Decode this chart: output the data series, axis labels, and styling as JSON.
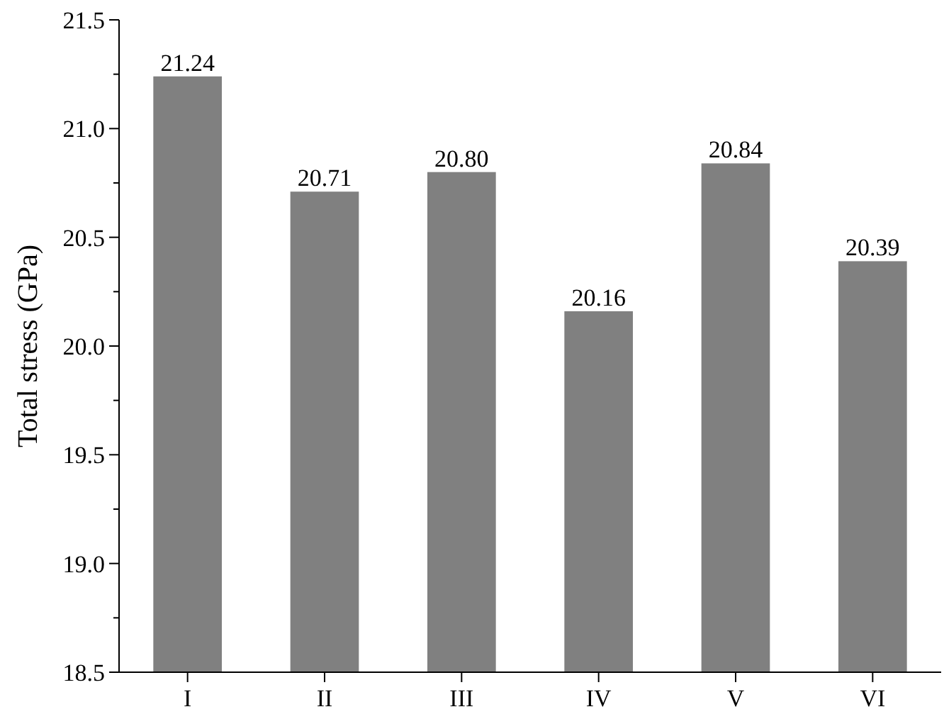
{
  "chart_data": {
    "type": "bar",
    "ylabel": "Total stress (GPa)",
    "categories": [
      "I",
      "II",
      "III",
      "IV",
      "V",
      "VI"
    ],
    "values": [
      21.24,
      20.71,
      20.8,
      20.16,
      20.84,
      20.39
    ],
    "value_labels": [
      "21.24",
      "20.71",
      "20.80",
      "20.16",
      "20.84",
      "20.39"
    ],
    "color": "#808080",
    "ylim": [
      18.5,
      21.5
    ],
    "yticks": [
      {
        "value": 18.5,
        "label": "18.5"
      },
      {
        "value": 18.75,
        "label": null
      },
      {
        "value": 19,
        "label": "19.0"
      },
      {
        "value": 19.25,
        "label": null
      },
      {
        "value": 19.5,
        "label": "19.5"
      },
      {
        "value": 19.75,
        "label": null
      },
      {
        "value": 20,
        "label": "20.0"
      },
      {
        "value": 20.25,
        "label": null
      },
      {
        "value": 20.5,
        "label": "20.5"
      },
      {
        "value": 20.75,
        "label": null
      },
      {
        "value": 21,
        "label": "21.0"
      },
      {
        "value": 21.25,
        "label": null
      },
      {
        "value": 21.5,
        "label": "21.5"
      }
    ],
    "grid": false
  }
}
